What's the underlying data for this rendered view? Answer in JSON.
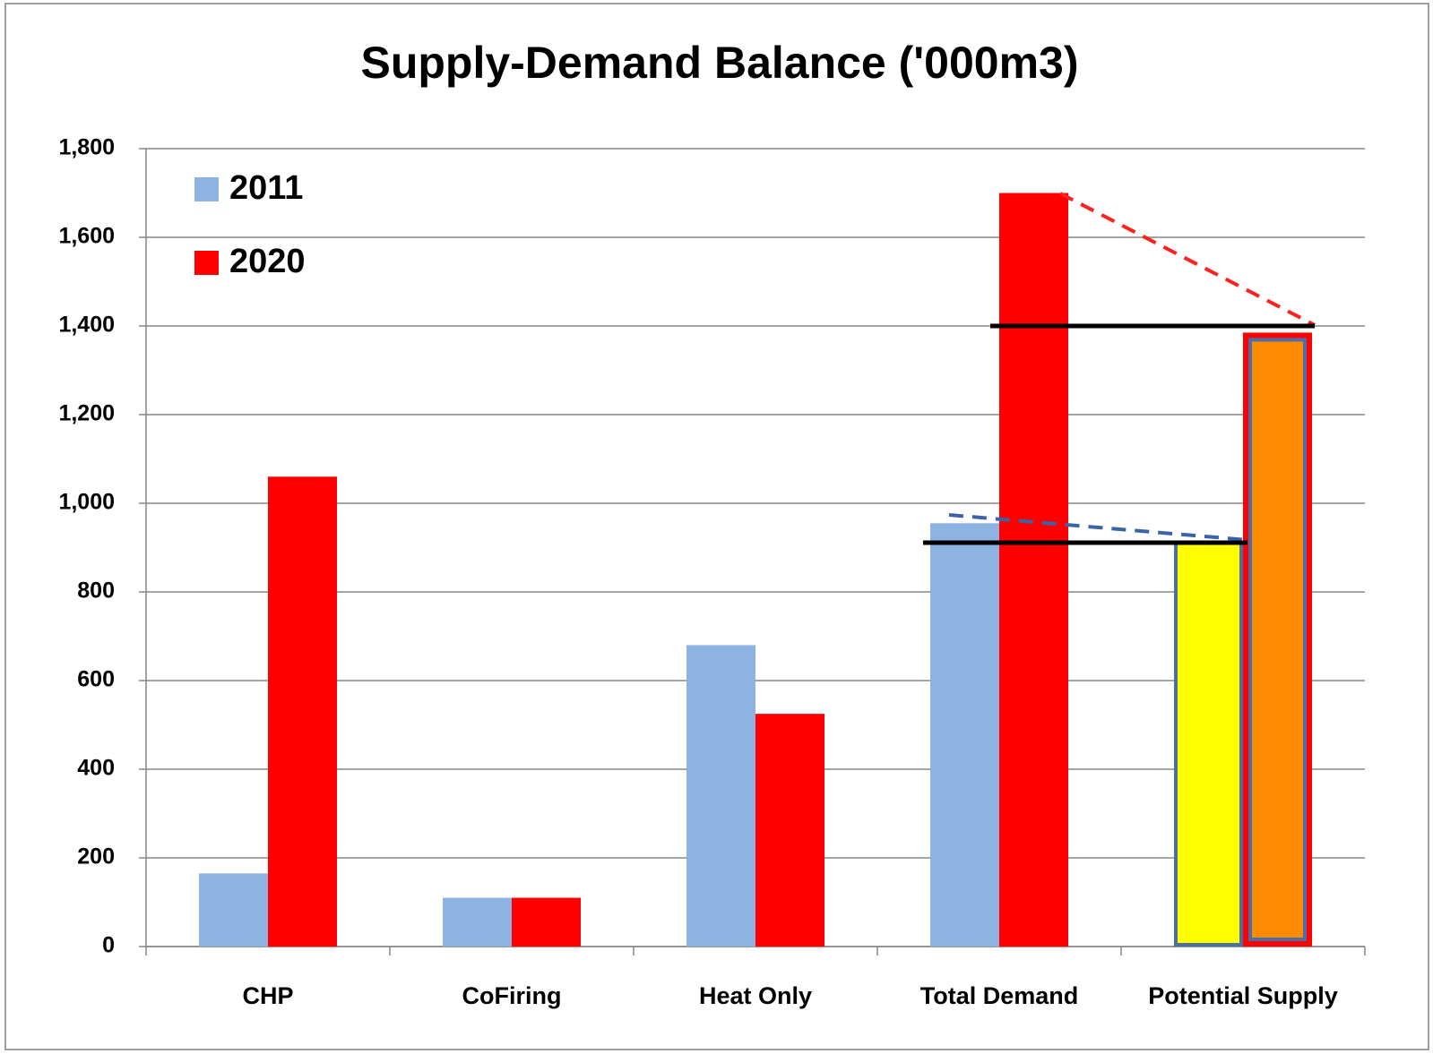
{
  "chart_data": {
    "type": "bar",
    "title": "Supply-Demand Balance ('000m3)",
    "categories": [
      "CHP",
      "CoFiring",
      "Heat Only",
      "Total Demand",
      "Potential Supply"
    ],
    "series": [
      {
        "name": "2011",
        "color": "#8db3e2",
        "colors": [
          "#8db3e2",
          "#8db3e2",
          "#8db3e2",
          "#8db3e2",
          "#ffff00"
        ],
        "values": [
          165,
          110,
          680,
          955,
          915
        ]
      },
      {
        "name": "2020",
        "color": "#ff0000",
        "colors": [
          "#ff0000",
          "#ff0000",
          "#ff0000",
          "#ff0000",
          "#ff8c00"
        ],
        "values": [
          1060,
          110,
          525,
          1700,
          1385
        ]
      }
    ],
    "ylim": [
      0,
      1800
    ],
    "yticks": [
      0,
      200,
      400,
      600,
      800,
      {
        "value": 1000,
        "label": "1,000"
      },
      {
        "value": 1200,
        "label": "1,200"
      },
      {
        "value": 1400,
        "label": "1,400"
      },
      {
        "value": 1600,
        "label": "1,600"
      },
      {
        "value": 1800,
        "label": "1,800"
      }
    ],
    "grid": true,
    "legend": "upper left"
  }
}
